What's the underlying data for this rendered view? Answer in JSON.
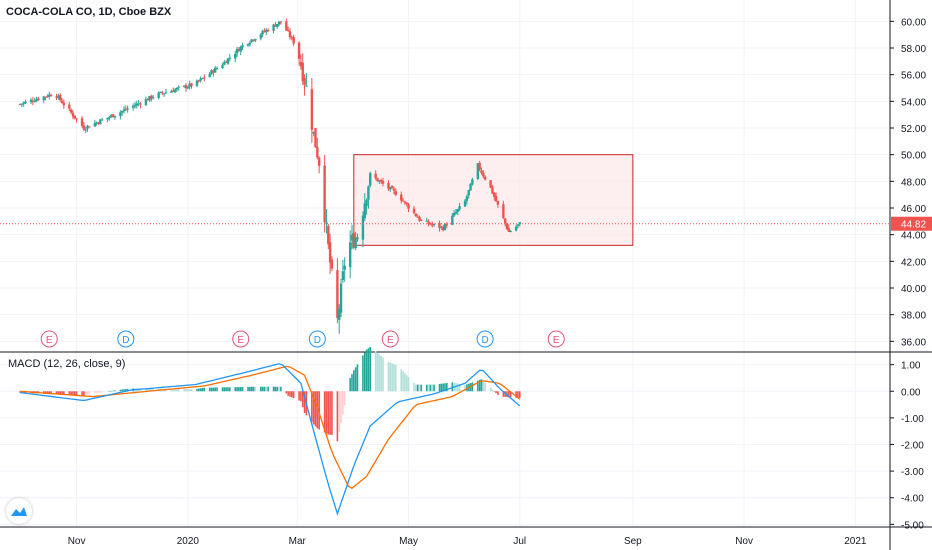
{
  "chart_data": {
    "type": "candlestick",
    "title": "COCA-COLA CO, 1D, Cboe BZX",
    "price_axis": {
      "ylim": [
        35.2,
        61.0
      ],
      "ticks": [
        "60.00",
        "58.00",
        "56.00",
        "54.00",
        "52.00",
        "50.00",
        "48.00",
        "46.00",
        "44.00",
        "42.00",
        "40.00",
        "38.00",
        "36.00"
      ]
    },
    "time_axis": {
      "labels": [
        "Nov",
        "2020",
        "Mar",
        "May",
        "Jul",
        "Sep",
        "Nov",
        "2021"
      ]
    },
    "last_price": "44.82",
    "rectangle_annotation": {
      "price_top": 50.0,
      "price_bottom": 43.2,
      "date_start": "2020-04-01",
      "date_end": "2020-09-01"
    },
    "anchors": [
      {
        "date": "2019-10-01",
        "price": 53.8
      },
      {
        "date": "2019-10-20",
        "price": 54.6
      },
      {
        "date": "2019-11-05",
        "price": 52.0
      },
      {
        "date": "2019-11-25",
        "price": 53.2
      },
      {
        "date": "2019-12-15",
        "price": 54.5
      },
      {
        "date": "2020-01-05",
        "price": 55.3
      },
      {
        "date": "2020-01-20",
        "price": 56.8
      },
      {
        "date": "2020-02-01",
        "price": 58.3
      },
      {
        "date": "2020-02-21",
        "price": 60.0
      },
      {
        "date": "2020-03-01",
        "price": 58.0
      },
      {
        "date": "2020-03-06",
        "price": 55.0
      },
      {
        "date": "2020-03-10",
        "price": 51.5
      },
      {
        "date": "2020-03-13",
        "price": 49.5
      },
      {
        "date": "2020-03-18",
        "price": 43.0
      },
      {
        "date": "2020-03-23",
        "price": 37.5
      },
      {
        "date": "2020-03-28",
        "price": 43.0
      },
      {
        "date": "2020-04-03",
        "price": 44.0
      },
      {
        "date": "2020-04-10",
        "price": 48.5
      },
      {
        "date": "2020-04-25",
        "price": 47.0
      },
      {
        "date": "2020-05-08",
        "price": 45.0
      },
      {
        "date": "2020-05-20",
        "price": 44.5
      },
      {
        "date": "2020-06-01",
        "price": 46.5
      },
      {
        "date": "2020-06-08",
        "price": 49.2
      },
      {
        "date": "2020-06-15",
        "price": 47.5
      },
      {
        "date": "2020-06-25",
        "price": 44.2
      },
      {
        "date": "2020-07-01",
        "price": 44.82
      }
    ],
    "earnings_markers": [
      {
        "label": "E",
        "date": "2019-10-17"
      },
      {
        "label": "D",
        "date": "2019-11-28"
      },
      {
        "label": "E",
        "date": "2020-01-30"
      },
      {
        "label": "D",
        "date": "2020-03-12"
      },
      {
        "label": "E",
        "date": "2020-04-21"
      },
      {
        "label": "D",
        "date": "2020-06-12"
      },
      {
        "label": "E",
        "date": "2020-07-21"
      }
    ],
    "macd": {
      "label": "MACD (12, 26, close, 9)",
      "ylim": [
        -5.1,
        1.4
      ],
      "ticks": [
        "1.00",
        "0.00",
        "-1.00",
        "-2.00",
        "-3.00",
        "-4.00",
        "-5.00"
      ],
      "macd_anchors": [
        {
          "date": "2019-10-01",
          "v": -0.05
        },
        {
          "date": "2019-11-05",
          "v": -0.35
        },
        {
          "date": "2019-12-01",
          "v": 0.05
        },
        {
          "date": "2020-01-05",
          "v": 0.25
        },
        {
          "date": "2020-02-01",
          "v": 0.7
        },
        {
          "date": "2020-02-21",
          "v": 1.05
        },
        {
          "date": "2020-03-03",
          "v": 0.3
        },
        {
          "date": "2020-03-10",
          "v": -1.5
        },
        {
          "date": "2020-03-18",
          "v": -3.5
        },
        {
          "date": "2020-03-23",
          "v": -4.6
        },
        {
          "date": "2020-04-01",
          "v": -2.8
        },
        {
          "date": "2020-04-10",
          "v": -1.3
        },
        {
          "date": "2020-04-25",
          "v": -0.4
        },
        {
          "date": "2020-05-15",
          "v": -0.1
        },
        {
          "date": "2020-06-01",
          "v": 0.3
        },
        {
          "date": "2020-06-10",
          "v": 0.85
        },
        {
          "date": "2020-06-20",
          "v": 0.1
        },
        {
          "date": "2020-07-01",
          "v": -0.55
        }
      ],
      "signal_anchors": [
        {
          "date": "2019-10-01",
          "v": 0.0
        },
        {
          "date": "2019-11-10",
          "v": -0.2
        },
        {
          "date": "2019-12-10",
          "v": 0.0
        },
        {
          "date": "2020-01-10",
          "v": 0.2
        },
        {
          "date": "2020-02-05",
          "v": 0.6
        },
        {
          "date": "2020-02-25",
          "v": 0.95
        },
        {
          "date": "2020-03-05",
          "v": 0.6
        },
        {
          "date": "2020-03-12",
          "v": -0.6
        },
        {
          "date": "2020-03-20",
          "v": -2.3
        },
        {
          "date": "2020-03-30",
          "v": -3.7
        },
        {
          "date": "2020-04-08",
          "v": -3.2
        },
        {
          "date": "2020-04-20",
          "v": -1.8
        },
        {
          "date": "2020-05-05",
          "v": -0.5
        },
        {
          "date": "2020-05-25",
          "v": -0.2
        },
        {
          "date": "2020-06-10",
          "v": 0.4
        },
        {
          "date": "2020-06-20",
          "v": 0.3
        },
        {
          "date": "2020-07-01",
          "v": -0.3
        }
      ]
    }
  },
  "colors": {
    "up": "#26a69a",
    "down": "#ef5350",
    "up_light": "#b2dfdb",
    "down_light": "#ffcdd2",
    "macd": "#2196f3",
    "signal": "#ff6d00",
    "grid": "#f0f3fa",
    "axis_text": "#131722",
    "rect_stroke": "#c62828",
    "rect_fill": "#fce4e4",
    "price_line": "#ef5350",
    "e_marker": "#e0567a",
    "d_marker": "#2196f3"
  },
  "ui": {
    "logo_icon": "tradingview-cloud-icon"
  }
}
